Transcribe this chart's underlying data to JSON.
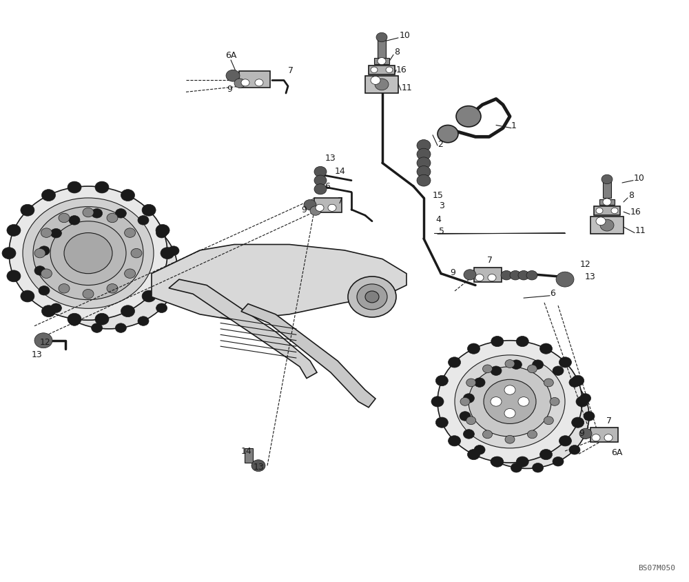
{
  "bg_color": "#ffffff",
  "fig_width": 10.0,
  "fig_height": 8.44,
  "watermark": "BS07M050"
}
